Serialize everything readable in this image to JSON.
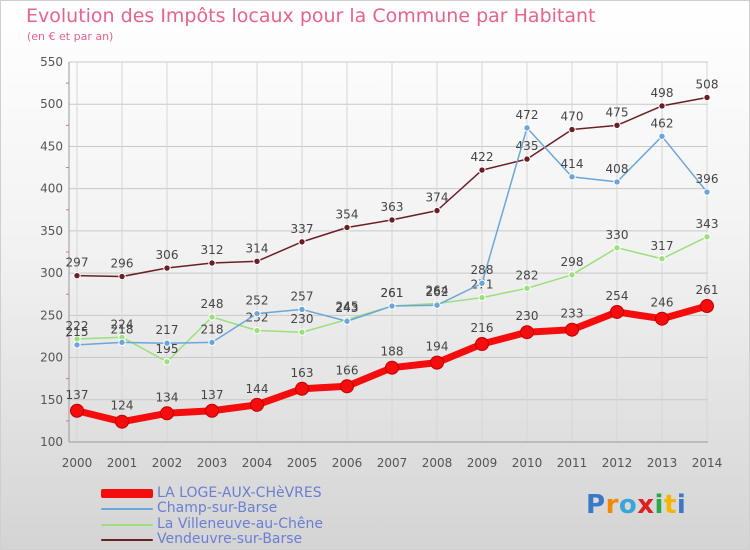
{
  "title": "Evolution des Impôts locaux pour la Commune par Habitant",
  "subtitle": "(en € et par an)",
  "logo": {
    "text": "Proxiti",
    "letters": [
      "P",
      "r",
      "o",
      "x",
      "i",
      "t",
      "i"
    ],
    "colors": [
      "#3b78c9",
      "#f08a00",
      "#3aa6d8",
      "#e02020",
      "#29a94a",
      "#f6b500",
      "#3b78c9"
    ]
  },
  "chart_data": {
    "type": "line",
    "title": "Evolution des Impôts locaux pour la Commune par Habitant",
    "subtitle": "(en € et par an)",
    "xlabel": "",
    "ylabel": "",
    "x": [
      "2000",
      "2001",
      "2002",
      "2003",
      "2004",
      "2005",
      "2006",
      "2007",
      "2008",
      "2009",
      "2010",
      "2011",
      "2012",
      "2013",
      "2014"
    ],
    "ylim": [
      100,
      550
    ],
    "yticks": [
      "100",
      "150",
      "200",
      "250",
      "300",
      "350",
      "400",
      "450",
      "500",
      "550"
    ],
    "grid": true,
    "legend_position": "bottom-left",
    "series": [
      {
        "name": "Vendeuvre-sur-Barse",
        "color": "#6b1e24",
        "values": [
          297,
          296,
          306,
          312,
          314,
          337,
          354,
          363,
          374,
          422,
          435,
          470,
          475,
          498,
          508
        ],
        "labels": [
          "297",
          "296",
          "306",
          "312",
          "314",
          "337",
          "354",
          "363",
          "374",
          "422",
          "435",
          "470",
          "475",
          "498",
          "508"
        ]
      },
      {
        "name": "La Villeneuve-au-Chêne",
        "color": "#9be07a",
        "values": [
          222,
          224,
          195,
          248,
          232,
          230,
          245,
          261,
          264,
          271,
          282,
          298,
          330,
          317,
          343
        ],
        "labels": [
          "222",
          "224",
          "195",
          "248",
          "232",
          "230",
          "245",
          "261",
          "264",
          "271",
          "282",
          "298",
          "330",
          "317",
          "343"
        ]
      },
      {
        "name": "Champ-sur-Barse",
        "color": "#6ba6db",
        "values": [
          215,
          218,
          217,
          218,
          252,
          257,
          243,
          261,
          262,
          288,
          472,
          414,
          408,
          462,
          396
        ],
        "labels": [
          "215",
          "218",
          "217",
          "218",
          "252",
          "257",
          "243",
          "261",
          "262",
          "288",
          "472",
          "414",
          "408",
          "462",
          "396"
        ]
      },
      {
        "name": "LA LOGE-AUX-CHèVRES",
        "color": "#f50c0c",
        "values": [
          137,
          124,
          134,
          137,
          144,
          163,
          166,
          188,
          194,
          216,
          230,
          233,
          254,
          246,
          261
        ],
        "labels": [
          "137",
          "124",
          "134",
          "137",
          "144",
          "163",
          "166",
          "188",
          "194",
          "216",
          "230",
          "233",
          "254",
          "246",
          "261"
        ]
      }
    ],
    "legend": [
      "LA LOGE-AUX-CHèVRES",
      "Champ-sur-Barse",
      "La Villeneuve-au-Chêne",
      "Vendeuvre-sur-Barse"
    ]
  }
}
